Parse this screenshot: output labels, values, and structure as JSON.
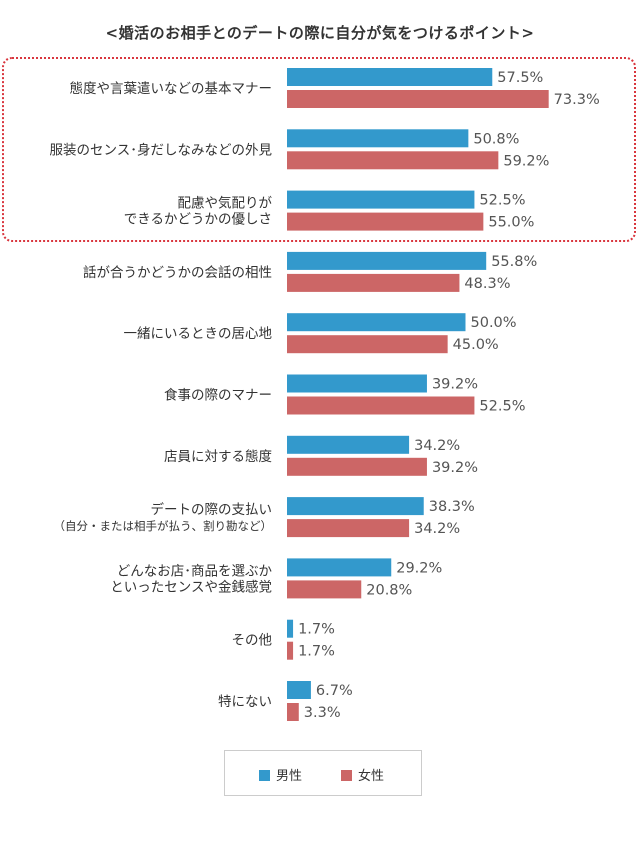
{
  "title": "<婚活のお相手とのデートの際に自分が気をつけるポイント>",
  "chart_data": {
    "type": "bar",
    "orientation": "horizontal",
    "xlim": [
      0,
      100
    ],
    "categories": [
      [
        "態度や言葉遣いなどの基本マナー"
      ],
      [
        "服装のセンス･身だしなみなどの外見"
      ],
      [
        "配慮や気配りが",
        "できるかどうかの優しさ"
      ],
      [
        "話が合うかどうかの会話の相性"
      ],
      [
        "一緒にいるときの居心地"
      ],
      [
        "食事の際のマナー"
      ],
      [
        "店員に対する態度"
      ],
      [
        "デートの際の支払い",
        "（自分・または相手が払う、割り勘など）"
      ],
      [
        "どんなお店･商品を選ぶか",
        "といったセンスや金銭感覚"
      ],
      [
        "その他"
      ],
      [
        "特にない"
      ]
    ],
    "series": [
      {
        "name": "男性",
        "color": "#3399cc",
        "values": [
          57.5,
          50.8,
          52.5,
          55.8,
          50.0,
          39.2,
          34.2,
          38.3,
          29.2,
          1.7,
          6.7
        ],
        "labels": [
          "57.5%",
          "50.8%",
          "52.5%",
          "55.8%",
          "50.0%",
          "39.2%",
          "34.2%",
          "38.3%",
          "29.2%",
          "1.7%",
          "6.7%"
        ]
      },
      {
        "name": "女性",
        "color": "#cc6666",
        "values": [
          73.3,
          59.2,
          55.0,
          48.3,
          45.0,
          52.5,
          39.2,
          34.2,
          20.8,
          1.7,
          3.3
        ],
        "labels": [
          "73.3%",
          "59.2%",
          "55.0%",
          "48.3%",
          "45.0%",
          "52.5%",
          "39.2%",
          "34.2%",
          "20.8%",
          "1.7%",
          "3.3%"
        ]
      }
    ],
    "highlighted_categories": [
      0,
      1,
      2
    ],
    "legend_position": "bottom-center"
  }
}
